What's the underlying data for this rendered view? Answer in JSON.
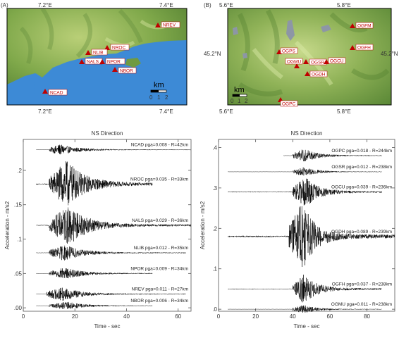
{
  "maps": [
    {
      "panel_label": "(A)",
      "coord_labels": [
        "7.2°E",
        "7.4°E",
        "7.2°E",
        "7.4°E"
      ],
      "scale_unit": "km",
      "scale_ticks": [
        "0",
        "1",
        "2"
      ],
      "stations": [
        "NREV",
        "NROC",
        "NLIB",
        "NALS",
        "NPOR",
        "NBOR",
        "NCAD"
      ]
    },
    {
      "panel_label": "(B)",
      "coord_labels": [
        "5.6°E",
        "5.8°E",
        "5.6°E",
        "5.8°E",
        "45.2°N",
        "45.2°N"
      ],
      "scale_unit": "km",
      "scale_ticks": [
        "0",
        "1",
        "2"
      ],
      "stations": [
        "OGFM",
        "OGFH",
        "OGPS",
        "OGSR",
        "OGCU",
        "OGMU",
        "OGDH",
        "OGPC"
      ]
    }
  ],
  "chart_data": [
    {
      "type": "line",
      "title": "NS Direction",
      "xlabel": "Time  -  sec",
      "ylabel": "Acceleration  -  m/s2",
      "xlim": [
        0,
        65
      ],
      "ylim": [
        -0.005,
        0.245
      ],
      "xticks": [
        0,
        20,
        40,
        60
      ],
      "yticks": [
        0.0,
        0.05,
        0.1,
        0.15,
        0.2
      ],
      "ytick_labels": [
        ".00",
        ".05",
        ".1",
        ".15",
        ".2"
      ],
      "series": [
        {
          "name": "NCAD",
          "label": "NCAD  pga=0.008  -  R=42km",
          "offset": 0.23,
          "pga": 0.008,
          "start": 5,
          "end": 65,
          "onset": 10,
          "peak_time": 14
        },
        {
          "name": "NROC",
          "label": "NROC  pga=0.035  -  R=33km",
          "offset": 0.18,
          "pga": 0.035,
          "start": 5,
          "end": 50,
          "onset": 10,
          "peak_time": 17
        },
        {
          "name": "NALS",
          "label": "NALS  pga=0.029  -  R=36km",
          "offset": 0.12,
          "pga": 0.029,
          "start": 5,
          "end": 65,
          "onset": 10,
          "peak_time": 18
        },
        {
          "name": "NLIB",
          "label": "NLIB  pga=0.012  -  R=35km",
          "offset": 0.08,
          "pga": 0.012,
          "start": 5,
          "end": 63,
          "onset": 10,
          "peak_time": 16
        },
        {
          "name": "NPOR",
          "label": "NPOR  pga=0.009  -  R=34km",
          "offset": 0.05,
          "pga": 0.009,
          "start": 5,
          "end": 50,
          "onset": 10,
          "peak_time": 16
        },
        {
          "name": "NREV",
          "label": "NREV  pga=0.011  -  R=27km",
          "offset": 0.02,
          "pga": 0.011,
          "start": 5,
          "end": 63,
          "onset": 9,
          "peak_time": 15
        },
        {
          "name": "NBOR",
          "label": "NBOR  pga=0.006  -  R=34km",
          "offset": 0.003,
          "pga": 0.006,
          "start": 5,
          "end": 50,
          "onset": 10,
          "peak_time": 17
        }
      ]
    },
    {
      "type": "line",
      "title": "NS Direction",
      "xlabel": "Time  -  sec",
      "ylabel": "Acceleration  -  m/s2",
      "xlim": [
        0,
        95
      ],
      "ylim": [
        -0.005,
        0.42
      ],
      "xticks": [
        0,
        20,
        40,
        60,
        80
      ],
      "yticks": [
        0.0,
        0.1,
        0.2,
        0.3,
        0.4
      ],
      "ytick_labels": [
        ".0",
        ".1",
        ".2",
        ".3",
        ".4"
      ],
      "series": [
        {
          "name": "OGPC",
          "label": "OGPC  pga=0.018  -  R=244km",
          "offset": 0.38,
          "pga": 0.018,
          "start": 35,
          "end": 88,
          "onset": 40,
          "peak_time": 46
        },
        {
          "name": "OGSR",
          "label": "OGSR  pga=0.012  -  R=238km",
          "offset": 0.34,
          "pga": 0.012,
          "start": 5,
          "end": 88,
          "onset": 40,
          "peak_time": 46
        },
        {
          "name": "OGCU",
          "label": "OGCU  pga=0.039  -  R=236km",
          "offset": 0.29,
          "pga": 0.039,
          "start": 5,
          "end": 88,
          "onset": 40,
          "peak_time": 47
        },
        {
          "name": "OGDH",
          "label": "OGDH  pga=0.089  -  R=239km",
          "offset": 0.18,
          "pga": 0.089,
          "start": 5,
          "end": 95,
          "onset": 38,
          "peak_time": 45
        },
        {
          "name": "OGFH",
          "label": "OGFH  pga=0.037  -  R=238km",
          "offset": 0.05,
          "pga": 0.037,
          "start": 5,
          "end": 88,
          "onset": 40,
          "peak_time": 46
        },
        {
          "name": "OGMU",
          "label": "OGMU  pga=0.011  -  R=238km",
          "offset": 0.0,
          "pga": 0.011,
          "start": 5,
          "end": 88,
          "onset": 40,
          "peak_time": 46
        }
      ]
    }
  ]
}
